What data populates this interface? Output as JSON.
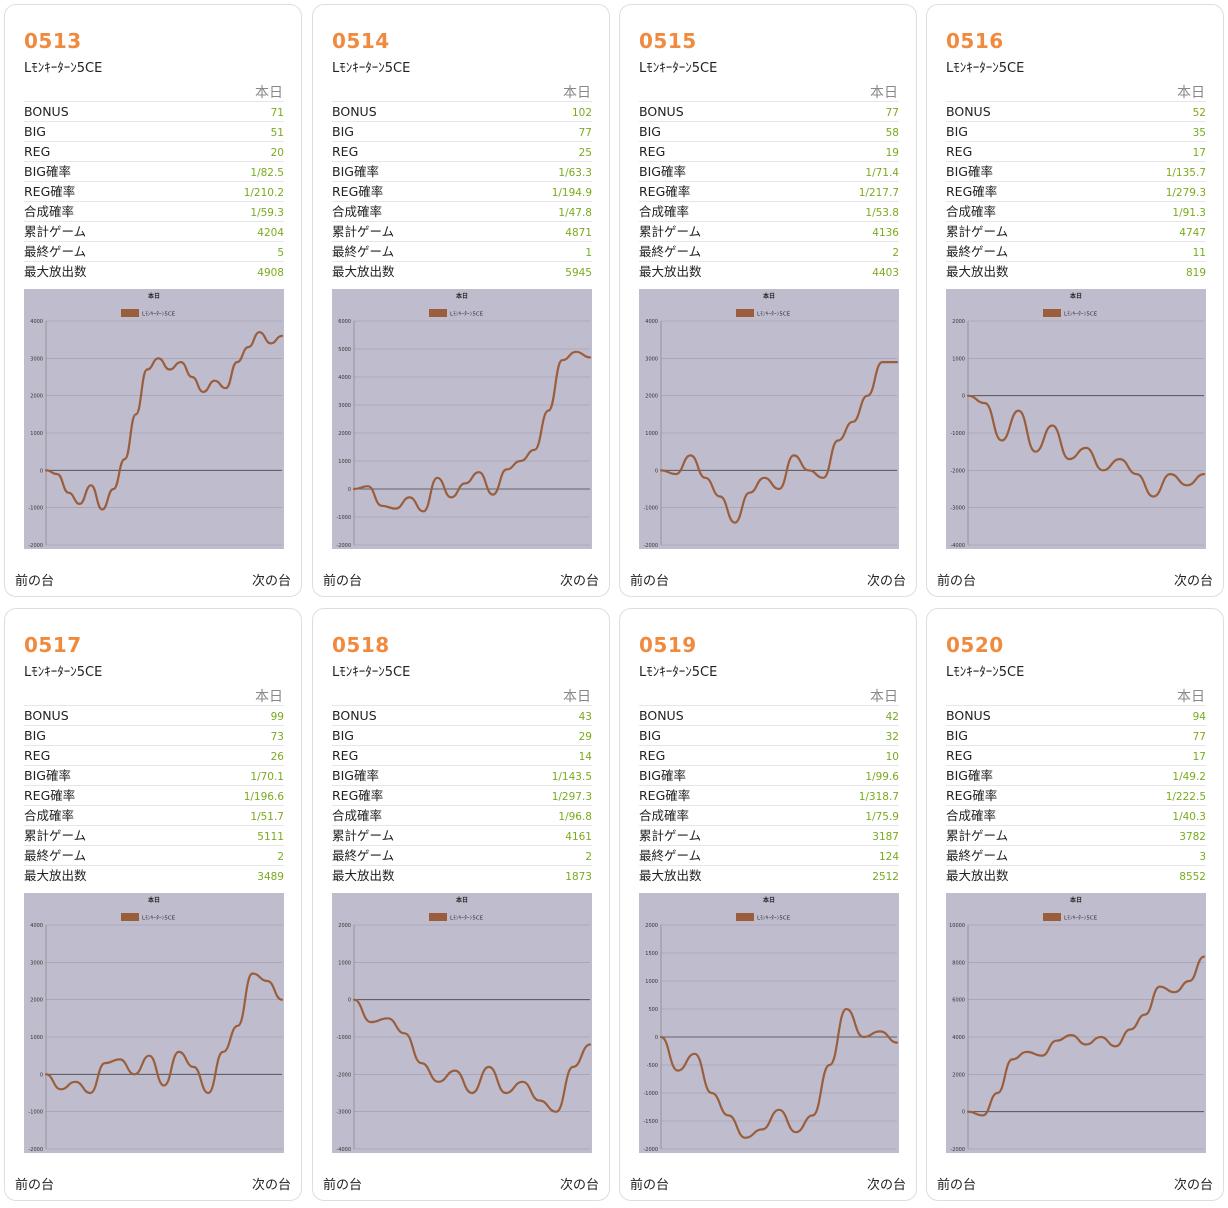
{
  "today_label": "本日",
  "prev_label": "前の台",
  "next_label": "次の台",
  "stat_keys": [
    "BONUS",
    "BIG",
    "REG",
    "BIG確率",
    "REG確率",
    "合成確率",
    "累計ゲーム",
    "最終ゲーム",
    "最大放出数"
  ],
  "colors": {
    "accent": "#f08a3e",
    "value": "#7aaa1e",
    "line": "#9a5e3c",
    "plot_bg": "#bfbdcd"
  },
  "machines": [
    {
      "no": "0513",
      "name": "Lﾓﾝｷｰﾀｰﾝ5CE",
      "stats": [
        "71",
        "51",
        "20",
        "1/82.5",
        "1/210.2",
        "1/59.3",
        "4204",
        "5",
        "4908"
      ]
    },
    {
      "no": "0514",
      "name": "Lﾓﾝｷｰﾀｰﾝ5CE",
      "stats": [
        "102",
        "77",
        "25",
        "1/63.3",
        "1/194.9",
        "1/47.8",
        "4871",
        "1",
        "5945"
      ]
    },
    {
      "no": "0515",
      "name": "Lﾓﾝｷｰﾀｰﾝ5CE",
      "stats": [
        "77",
        "58",
        "19",
        "1/71.4",
        "1/217.7",
        "1/53.8",
        "4136",
        "2",
        "4403"
      ]
    },
    {
      "no": "0516",
      "name": "Lﾓﾝｷｰﾀｰﾝ5CE",
      "stats": [
        "52",
        "35",
        "17",
        "1/135.7",
        "1/279.3",
        "1/91.3",
        "4747",
        "11",
        "819"
      ]
    },
    {
      "no": "0517",
      "name": "Lﾓﾝｷｰﾀｰﾝ5CE",
      "stats": [
        "99",
        "73",
        "26",
        "1/70.1",
        "1/196.6",
        "1/51.7",
        "5111",
        "2",
        "3489"
      ]
    },
    {
      "no": "0518",
      "name": "Lﾓﾝｷｰﾀｰﾝ5CE",
      "stats": [
        "43",
        "29",
        "14",
        "1/143.5",
        "1/297.3",
        "1/96.8",
        "4161",
        "2",
        "1873"
      ]
    },
    {
      "no": "0519",
      "name": "Lﾓﾝｷｰﾀｰﾝ5CE",
      "stats": [
        "42",
        "32",
        "10",
        "1/99.6",
        "1/318.7",
        "1/75.9",
        "3187",
        "124",
        "2512"
      ]
    },
    {
      "no": "0520",
      "name": "Lﾓﾝｷｰﾀｰﾝ5CE",
      "stats": [
        "94",
        "77",
        "17",
        "1/49.2",
        "1/222.5",
        "1/40.3",
        "3782",
        "3",
        "8552"
      ]
    }
  ],
  "chart_data": [
    {
      "type": "line",
      "title": "本日",
      "legend": "top-center",
      "series_name": "Lﾓﾝｷｰﾀｰﾝ5CE",
      "ylim": [
        -2000,
        4000
      ],
      "yticks": [
        -2000,
        -1000,
        0,
        1000,
        2000,
        3000,
        4000
      ],
      "values": [
        0,
        -100,
        -600,
        -900,
        -400,
        -1050,
        -500,
        300,
        1500,
        2700,
        3000,
        2700,
        2900,
        2500,
        2100,
        2400,
        2200,
        2900,
        3300,
        3700,
        3400,
        3600
      ]
    },
    {
      "type": "line",
      "title": "本日",
      "legend": "top-center",
      "series_name": "Lﾓﾝｷｰﾀｰﾝ5CE",
      "ylim": [
        -2000,
        6000
      ],
      "yticks": [
        -2000,
        -1000,
        0,
        1000,
        2000,
        3000,
        4000,
        5000,
        6000
      ],
      "values": [
        0,
        100,
        -600,
        -700,
        -300,
        -800,
        400,
        -300,
        200,
        600,
        -200,
        700,
        1000,
        1400,
        2800,
        4600,
        4900,
        4700
      ]
    },
    {
      "type": "line",
      "title": "本日",
      "legend": "top-center",
      "series_name": "Lﾓﾝｷｰﾀｰﾝ5CE",
      "ylim": [
        -2000,
        4000
      ],
      "yticks": [
        -2000,
        -1000,
        0,
        1000,
        2000,
        3000,
        4000
      ],
      "values": [
        0,
        -100,
        400,
        -200,
        -700,
        -1400,
        -600,
        -200,
        -500,
        400,
        0,
        -200,
        800,
        1300,
        2000,
        2900,
        2900
      ]
    },
    {
      "type": "line",
      "title": "本日",
      "legend": "top-center",
      "series_name": "Lﾓﾝｷｰﾀｰﾝ5CE",
      "ylim": [
        -4000,
        2000
      ],
      "yticks": [
        -4000,
        -3000,
        -2000,
        -1000,
        0,
        1000,
        2000
      ],
      "values": [
        0,
        -200,
        -1200,
        -400,
        -1500,
        -800,
        -1700,
        -1400,
        -2000,
        -1700,
        -2100,
        -2700,
        -2100,
        -2400,
        -2100
      ]
    },
    {
      "type": "line",
      "title": "本日",
      "legend": "top-center",
      "series_name": "Lﾓﾝｷｰﾀｰﾝ5CE",
      "ylim": [
        -2000,
        4000
      ],
      "yticks": [
        -2000,
        -1000,
        0,
        1000,
        2000,
        3000,
        4000
      ],
      "values": [
        0,
        -400,
        -200,
        -500,
        300,
        400,
        0,
        500,
        -300,
        600,
        200,
        -500,
        600,
        1300,
        2700,
        2500,
        2000
      ]
    },
    {
      "type": "line",
      "title": "本日",
      "legend": "top-center",
      "series_name": "Lﾓﾝｷｰﾀｰﾝ5CE",
      "ylim": [
        -4000,
        2000
      ],
      "yticks": [
        -4000,
        -3000,
        -2000,
        -1000,
        0,
        1000,
        2000
      ],
      "values": [
        0,
        -600,
        -500,
        -900,
        -1700,
        -2200,
        -1900,
        -2500,
        -1800,
        -2500,
        -2200,
        -2700,
        -3000,
        -1800,
        -1200
      ]
    },
    {
      "type": "line",
      "title": "本日",
      "legend": "top-center",
      "series_name": "Lﾓﾝｷｰﾀｰﾝ5CE",
      "ylim": [
        -2000,
        2000
      ],
      "yticks": [
        -2000,
        -1500,
        -1000,
        -500,
        0,
        500,
        1000,
        1500,
        2000
      ],
      "values": [
        0,
        -600,
        -300,
        -1000,
        -1400,
        -1800,
        -1650,
        -1300,
        -1700,
        -1400,
        -500,
        500,
        0,
        100,
        -100
      ]
    },
    {
      "type": "line",
      "title": "本日",
      "legend": "top-center",
      "series_name": "Lﾓﾝｷｰﾀｰﾝ5CE",
      "ylim": [
        -2000,
        10000
      ],
      "yticks": [
        -2000,
        0,
        2000,
        4000,
        6000,
        8000,
        10000
      ],
      "values": [
        0,
        -200,
        1000,
        2800,
        3200,
        3000,
        3800,
        4100,
        3600,
        4000,
        3500,
        4400,
        5200,
        6700,
        6400,
        7000,
        8300
      ]
    }
  ]
}
